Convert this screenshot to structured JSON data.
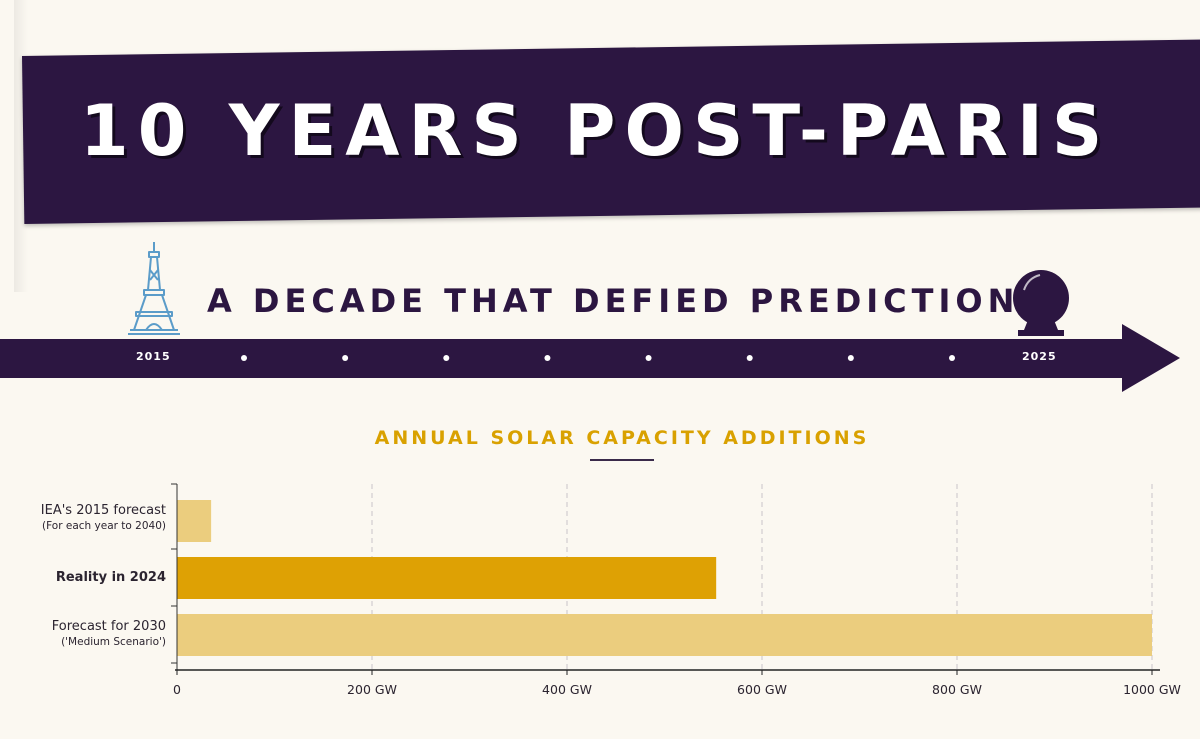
{
  "header": {
    "title": "10 YEARS POST-PARIS",
    "subtitle": "A DECADE THAT DEFIED PREDICTIONS"
  },
  "timeline": {
    "start_label": "2015",
    "end_label": "2025",
    "intermediate_markers": 8
  },
  "icons": [
    "eiffel-tower-icon",
    "crystal-ball-icon"
  ],
  "colors": {
    "banner": "#2c1641",
    "title_gold": "#d9a100",
    "bar_light": "#ebcd7e",
    "bar_dark": "#dea104",
    "background": "#fbf8f1"
  },
  "chart_data": {
    "type": "bar",
    "orientation": "horizontal",
    "title": "ANNUAL SOLAR CAPACITY ADDITIONS",
    "categories": [
      {
        "label": "IEA's 2015 forecast",
        "sublabel": "(For each year to 2040)",
        "bold": false
      },
      {
        "label": "Reality in 2024",
        "sublabel": "",
        "bold": true
      },
      {
        "label": "Forecast for 2030",
        "sublabel": "('Medium Scenario')",
        "bold": false
      }
    ],
    "values": [
      35,
      553,
      1000
    ],
    "unit": "GW",
    "xlim": [
      0,
      1000
    ],
    "ticks": [
      0,
      200,
      400,
      600,
      800,
      1000
    ],
    "tick_labels": [
      "0",
      "200 GW",
      "400 GW",
      "600 GW",
      "800 GW",
      "1000 GW"
    ],
    "grid": "vertical-dashed"
  }
}
